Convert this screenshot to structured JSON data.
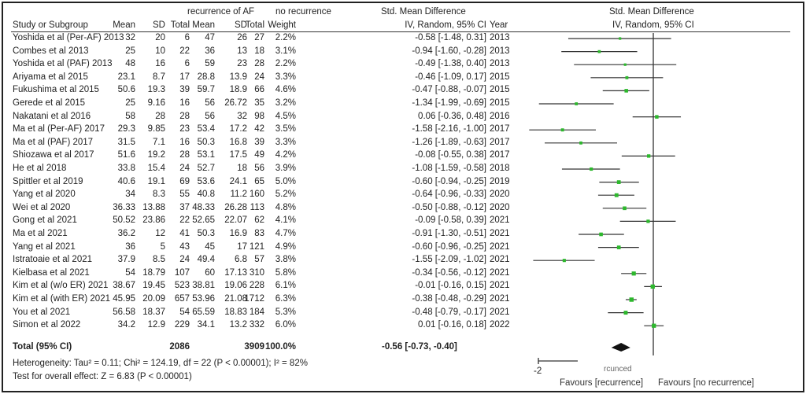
{
  "headers": {
    "group1": "recurrence of AF",
    "group2": "no recurrence",
    "smd_left": "Std. Mean Difference",
    "smd_right": "Std. Mean Difference",
    "study": "Study or Subgroup",
    "mean1": "Mean",
    "sd1": "SD",
    "total1": "Total",
    "mean2": "Mean",
    "sd2": "SD",
    "total2": "Total",
    "weight": "Weight",
    "ci_left": "IV, Random, 95% CI",
    "year": "Year",
    "ci_right": "IV, Random, 95% CI"
  },
  "chart_data": {
    "type": "forest",
    "xlim": [
      -2,
      2
    ],
    "rows": [
      {
        "study": "Yoshida et al (Per-AF) 2013",
        "m1": "32",
        "sd1": "20",
        "n1": "6",
        "m2": "47",
        "sd2": "26",
        "n2": "27",
        "weight": "2.2%",
        "ci": "-0.58 [-1.48, 0.31]",
        "year": "2013",
        "est": -0.58,
        "lo": -1.48,
        "hi": 0.31,
        "w": 2.2
      },
      {
        "study": "Combes et al 2013",
        "m1": "25",
        "sd1": "10",
        "n1": "22",
        "m2": "36",
        "sd2": "13",
        "n2": "18",
        "weight": "3.1%",
        "ci": "-0.94 [-1.60, -0.28]",
        "year": "2013",
        "est": -0.94,
        "lo": -1.6,
        "hi": -0.28,
        "w": 3.1
      },
      {
        "study": "Yoshida et al (PAF) 2013",
        "m1": "48",
        "sd1": "16",
        "n1": "6",
        "m2": "59",
        "sd2": "23",
        "n2": "28",
        "weight": "2.2%",
        "ci": "-0.49 [-1.38, 0.40]",
        "year": "2013",
        "est": -0.49,
        "lo": -1.38,
        "hi": 0.4,
        "w": 2.2
      },
      {
        "study": "Ariyama et al 2015",
        "m1": "23.1",
        "sd1": "8.7",
        "n1": "17",
        "m2": "28.8",
        "sd2": "13.9",
        "n2": "24",
        "weight": "3.3%",
        "ci": "-0.46 [-1.09, 0.17]",
        "year": "2015",
        "est": -0.46,
        "lo": -1.09,
        "hi": 0.17,
        "w": 3.3
      },
      {
        "study": "Fukushima et al 2015",
        "m1": "50.6",
        "sd1": "19.3",
        "n1": "39",
        "m2": "59.7",
        "sd2": "18.9",
        "n2": "66",
        "weight": "4.6%",
        "ci": "-0.47 [-0.88, -0.07]",
        "year": "2015",
        "est": -0.47,
        "lo": -0.88,
        "hi": -0.07,
        "w": 4.6
      },
      {
        "study": "Gerede et al 2015",
        "m1": "25",
        "sd1": "9.16",
        "n1": "16",
        "m2": "56",
        "sd2": "26.72",
        "n2": "35",
        "weight": "3.2%",
        "ci": "-1.34 [-1.99, -0.69]",
        "year": "2015",
        "est": -1.34,
        "lo": -1.99,
        "hi": -0.69,
        "w": 3.2
      },
      {
        "study": "Nakatani et al 2016",
        "m1": "58",
        "sd1": "28",
        "n1": "28",
        "m2": "56",
        "sd2": "32",
        "n2": "98",
        "weight": "4.5%",
        "ci": "0.06 [-0.36, 0.48]",
        "year": "2016",
        "est": 0.06,
        "lo": -0.36,
        "hi": 0.48,
        "w": 4.5
      },
      {
        "study": "Ma et al (Per-AF) 2017",
        "m1": "29.3",
        "sd1": "9.85",
        "n1": "23",
        "m2": "53.4",
        "sd2": "17.2",
        "n2": "42",
        "weight": "3.5%",
        "ci": "-1.58 [-2.16, -1.00]",
        "year": "2017",
        "est": -1.58,
        "lo": -2.16,
        "hi": -1.0,
        "w": 3.5
      },
      {
        "study": "Ma et al (PAF) 2017",
        "m1": "31.5",
        "sd1": "7.1",
        "n1": "16",
        "m2": "50.3",
        "sd2": "16.8",
        "n2": "39",
        "weight": "3.3%",
        "ci": "-1.26 [-1.89, -0.63]",
        "year": "2017",
        "est": -1.26,
        "lo": -1.89,
        "hi": -0.63,
        "w": 3.3
      },
      {
        "study": "Shiozawa et al 2017",
        "m1": "51.6",
        "sd1": "19.2",
        "n1": "28",
        "m2": "53.1",
        "sd2": "17.5",
        "n2": "49",
        "weight": "4.2%",
        "ci": "-0.08 [-0.55, 0.38]",
        "year": "2017",
        "est": -0.08,
        "lo": -0.55,
        "hi": 0.38,
        "w": 4.2
      },
      {
        "study": "He et al 2018",
        "m1": "33.8",
        "sd1": "15.4",
        "n1": "24",
        "m2": "52.7",
        "sd2": "18",
        "n2": "56",
        "weight": "3.9%",
        "ci": "-1.08 [-1.59, -0.58]",
        "year": "2018",
        "est": -1.08,
        "lo": -1.59,
        "hi": -0.58,
        "w": 3.9
      },
      {
        "study": "Spittler et al 2019",
        "m1": "40.6",
        "sd1": "19.1",
        "n1": "69",
        "m2": "53.6",
        "sd2": "24.1",
        "n2": "65",
        "weight": "5.0%",
        "ci": "-0.60 [-0.94, -0.25]",
        "year": "2019",
        "est": -0.6,
        "lo": -0.94,
        "hi": -0.25,
        "w": 5.0
      },
      {
        "study": "Yang et al 2020",
        "m1": "34",
        "sd1": "8.3",
        "n1": "55",
        "m2": "40.8",
        "sd2": "11.2",
        "n2": "160",
        "weight": "5.2%",
        "ci": "-0.64 [-0.96, -0.33]",
        "year": "2020",
        "est": -0.64,
        "lo": -0.96,
        "hi": -0.33,
        "w": 5.2
      },
      {
        "study": "Wei et al 2020",
        "m1": "36.33",
        "sd1": "13.88",
        "n1": "37",
        "m2": "48.33",
        "sd2": "26.28",
        "n2": "113",
        "weight": "4.8%",
        "ci": "-0.50 [-0.88, -0.12]",
        "year": "2020",
        "est": -0.5,
        "lo": -0.88,
        "hi": -0.12,
        "w": 4.8
      },
      {
        "study": "Gong et al 2021",
        "m1": "50.52",
        "sd1": "23.86",
        "n1": "22",
        "m2": "52.65",
        "sd2": "22.07",
        "n2": "62",
        "weight": "4.1%",
        "ci": "-0.09 [-0.58, 0.39]",
        "year": "2021",
        "est": -0.09,
        "lo": -0.58,
        "hi": 0.39,
        "w": 4.1
      },
      {
        "study": "Ma et al 2021",
        "m1": "36.2",
        "sd1": "12",
        "n1": "41",
        "m2": "50.3",
        "sd2": "16.9",
        "n2": "83",
        "weight": "4.7%",
        "ci": "-0.91 [-1.30, -0.51]",
        "year": "2021",
        "est": -0.91,
        "lo": -1.3,
        "hi": -0.51,
        "w": 4.7
      },
      {
        "study": "Yang et al 2021",
        "m1": "36",
        "sd1": "5",
        "n1": "43",
        "m2": "45",
        "sd2": "17",
        "n2": "121",
        "weight": "4.9%",
        "ci": "-0.60 [-0.96, -0.25]",
        "year": "2021",
        "est": -0.6,
        "lo": -0.96,
        "hi": -0.25,
        "w": 4.9
      },
      {
        "study": "Istratoaie et al 2021",
        "m1": "37.9",
        "sd1": "8.5",
        "n1": "24",
        "m2": "49.4",
        "sd2": "6.8",
        "n2": "57",
        "weight": "3.8%",
        "ci": "-1.55 [-2.09, -1.02]",
        "year": "2021",
        "est": -1.55,
        "lo": -2.09,
        "hi": -1.02,
        "w": 3.8
      },
      {
        "study": "Kielbasa et al 2021",
        "m1": "54",
        "sd1": "18.79",
        "n1": "107",
        "m2": "60",
        "sd2": "17.13",
        "n2": "310",
        "weight": "5.8%",
        "ci": "-0.34 [-0.56, -0.12]",
        "year": "2021",
        "est": -0.34,
        "lo": -0.56,
        "hi": -0.12,
        "w": 5.8
      },
      {
        "study": "Kim et al (w/o ER) 2021",
        "m1": "38.67",
        "sd1": "19.45",
        "n1": "523",
        "m2": "38.81",
        "sd2": "19.06",
        "n2": "228",
        "weight": "6.1%",
        "ci": "-0.01 [-0.16, 0.15]",
        "year": "2021",
        "est": -0.01,
        "lo": -0.16,
        "hi": 0.15,
        "w": 6.1
      },
      {
        "study": "Kim et al (with ER) 2021",
        "m1": "45.95",
        "sd1": "20.09",
        "n1": "657",
        "m2": "53.96",
        "sd2": "21.08",
        "n2": "1712",
        "weight": "6.3%",
        "ci": "-0.38 [-0.48, -0.29]",
        "year": "2021",
        "est": -0.38,
        "lo": -0.48,
        "hi": -0.29,
        "w": 6.3
      },
      {
        "study": "You et al 2021",
        "m1": "56.58",
        "sd1": "18.37",
        "n1": "54",
        "m2": "65.59",
        "sd2": "18.83",
        "n2": "184",
        "weight": "5.3%",
        "ci": "-0.48 [-0.79, -0.17]",
        "year": "2021",
        "est": -0.48,
        "lo": -0.79,
        "hi": -0.17,
        "w": 5.3
      },
      {
        "study": "Simon et al 2022",
        "m1": "34.2",
        "sd1": "12.9",
        "n1": "229",
        "m2": "34.1",
        "sd2": "13.2",
        "n2": "332",
        "weight": "6.0%",
        "ci": "0.01 [-0.16, 0.18]",
        "year": "2022",
        "est": 0.01,
        "lo": -0.16,
        "hi": 0.18,
        "w": 6.0
      }
    ],
    "total": {
      "label": "Total (95% CI)",
      "n1": "2086",
      "n2": "3909",
      "weight": "100.0%",
      "ci": "-0.56 [-0.73, -0.40]",
      "est": -0.56,
      "lo": -0.73,
      "hi": -0.4
    },
    "heterogeneity": "Heterogeneity: Tau² = 0.11; Chi² = 124.19, df = 22 (P < 0.00001); I² = 82%",
    "overall_effect": "Test for overall effect: Z = 6.83 (P < 0.00001)",
    "tick_labels": [
      {
        "value": -2,
        "label": "-2"
      }
    ],
    "garbled_tick_text": "rcunced",
    "favours_left": "Favours [recurrence]",
    "favours_right": "Favours [no recurrence]",
    "marker_color": "#2db82d"
  }
}
